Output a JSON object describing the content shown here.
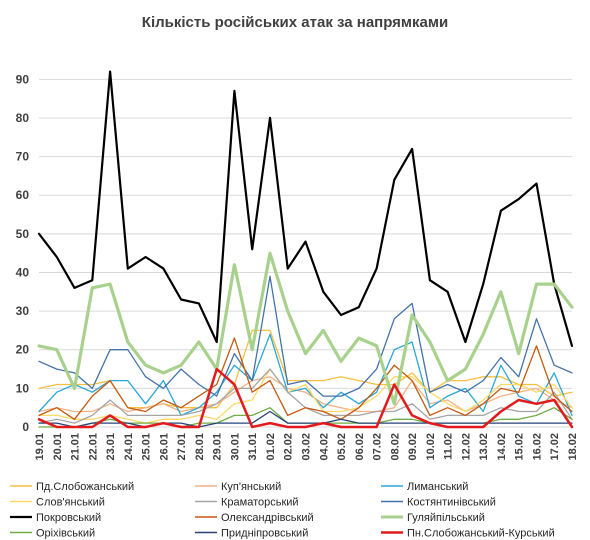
{
  "chart_data": {
    "type": "line",
    "title": "Кількість російських атак за напрямками",
    "xlabel": "",
    "ylabel": "",
    "ylim": [
      0,
      95
    ],
    "yticks": [
      0,
      10,
      20,
      30,
      40,
      50,
      60,
      70,
      80,
      90
    ],
    "grid": true,
    "legend_position": "bottom",
    "categories": [
      "19.01",
      "20.01",
      "21.01",
      "22.01",
      "23.01",
      "24.01",
      "25.01",
      "26.01",
      "27.01",
      "28.01",
      "29.01",
      "30.01",
      "31.01",
      "01.02",
      "02.02",
      "03.02",
      "04.02",
      "05.02",
      "06.02",
      "07.02",
      "08.02",
      "09.02",
      "10.02",
      "11.02",
      "12.02",
      "13.02",
      "14.02",
      "15.02",
      "16.02",
      "17.02",
      "18.02"
    ],
    "series": [
      {
        "name": "Пд.Слобожанський",
        "color": "#f5c040",
        "width": 1.3,
        "values": [
          10,
          11,
          11,
          11,
          12,
          5,
          5,
          6,
          5,
          5,
          5,
          11,
          25,
          25,
          12,
          12,
          12,
          13,
          12,
          11,
          11,
          14,
          9,
          12,
          12,
          13,
          13,
          11,
          11,
          8,
          9
        ]
      },
      {
        "name": "Куп'янський",
        "color": "#f4b183",
        "width": 1.3,
        "values": [
          4,
          5,
          4,
          4,
          6,
          4,
          5,
          6,
          4,
          5,
          6,
          9,
          12,
          13,
          10,
          9,
          6,
          5,
          4,
          4,
          5,
          12,
          6,
          7,
          4,
          6,
          8,
          9,
          10,
          7,
          5
        ]
      },
      {
        "name": "Лиманський",
        "color": "#2aa7d8",
        "width": 1.3,
        "values": [
          4,
          9,
          11,
          9,
          12,
          12,
          6,
          12,
          3,
          5,
          9,
          16,
          12,
          24,
          9,
          10,
          5,
          9,
          6,
          9,
          20,
          22,
          5,
          8,
          10,
          4,
          16,
          8,
          6,
          14,
          3
        ]
      },
      {
        "name": "Слов'янський",
        "color": "#ffd966",
        "width": 1.3,
        "values": [
          3,
          3,
          2,
          2,
          3,
          2,
          1,
          2,
          2,
          3,
          2,
          6,
          7,
          15,
          9,
          11,
          4,
          4,
          5,
          8,
          13,
          13,
          9,
          6,
          4,
          7,
          11,
          11,
          9,
          11,
          5
        ]
      },
      {
        "name": "Краматорський",
        "color": "#a5a5a5",
        "width": 1.3,
        "values": [
          1,
          2,
          1,
          3,
          7,
          3,
          3,
          3,
          3,
          4,
          6,
          10,
          10,
          15,
          9,
          5,
          3,
          3,
          3,
          4,
          4,
          6,
          2,
          3,
          3,
          3,
          5,
          4,
          4,
          9,
          2
        ]
      },
      {
        "name": "Костянтинівський",
        "color": "#4472a8",
        "width": 1.3,
        "values": [
          17,
          15,
          14,
          10,
          20,
          20,
          13,
          10,
          15,
          11,
          8,
          19,
          12,
          39,
          11,
          12,
          8,
          8,
          10,
          15,
          28,
          32,
          9,
          11,
          9,
          12,
          18,
          13,
          28,
          16,
          14
        ]
      },
      {
        "name": "Покровський",
        "color": "#000000",
        "width": 2.2,
        "values": [
          50,
          44,
          36,
          38,
          92,
          41,
          44,
          41,
          33,
          32,
          22,
          87,
          46,
          80,
          41,
          48,
          35,
          29,
          31,
          41,
          64,
          72,
          38,
          35,
          22,
          37,
          56,
          59,
          63,
          37,
          21
        ]
      },
      {
        "name": "Олександрівський",
        "color": "#c55a11",
        "width": 1.3,
        "values": [
          3,
          5,
          2,
          8,
          12,
          5,
          4,
          7,
          5,
          8,
          11,
          23,
          9,
          12,
          3,
          5,
          4,
          2,
          5,
          10,
          16,
          12,
          3,
          5,
          3,
          6,
          10,
          9,
          21,
          8,
          4
        ]
      },
      {
        "name": "Гуляйпільський",
        "color": "#a9d18e",
        "width": 3.2,
        "values": [
          21,
          20,
          10,
          36,
          37,
          22,
          16,
          14,
          16,
          22,
          15,
          42,
          20,
          45,
          30,
          19,
          25,
          17,
          23,
          21,
          6,
          29,
          22,
          12,
          15,
          24,
          35,
          19,
          37,
          37,
          31
        ]
      },
      {
        "name": "Оріхівський",
        "color": "#70ad47",
        "width": 1.3,
        "values": [
          0,
          0,
          0,
          1,
          2,
          1,
          1,
          1,
          0,
          1,
          1,
          3,
          3,
          5,
          1,
          1,
          1,
          1,
          1,
          1,
          2,
          2,
          1,
          1,
          1,
          1,
          2,
          2,
          3,
          5,
          2
        ]
      },
      {
        "name": "Придніпровський",
        "color": "#264478",
        "width": 1.3,
        "values": [
          1,
          1,
          0,
          1,
          1,
          1,
          0,
          1,
          1,
          0,
          1,
          1,
          1,
          4,
          1,
          1,
          1,
          2,
          1,
          1,
          1,
          1,
          1,
          1,
          1,
          1,
          1,
          1,
          1,
          1,
          1
        ]
      },
      {
        "name": "Пн.Слобожанський-Курський",
        "color": "#e31a1c",
        "width": 2.5,
        "values": [
          2,
          0,
          0,
          0,
          3,
          0,
          0,
          1,
          0,
          0,
          15,
          11,
          0,
          1,
          0,
          0,
          1,
          0,
          0,
          0,
          11,
          3,
          1,
          0,
          0,
          0,
          4,
          7,
          6,
          7,
          0
        ]
      }
    ]
  }
}
